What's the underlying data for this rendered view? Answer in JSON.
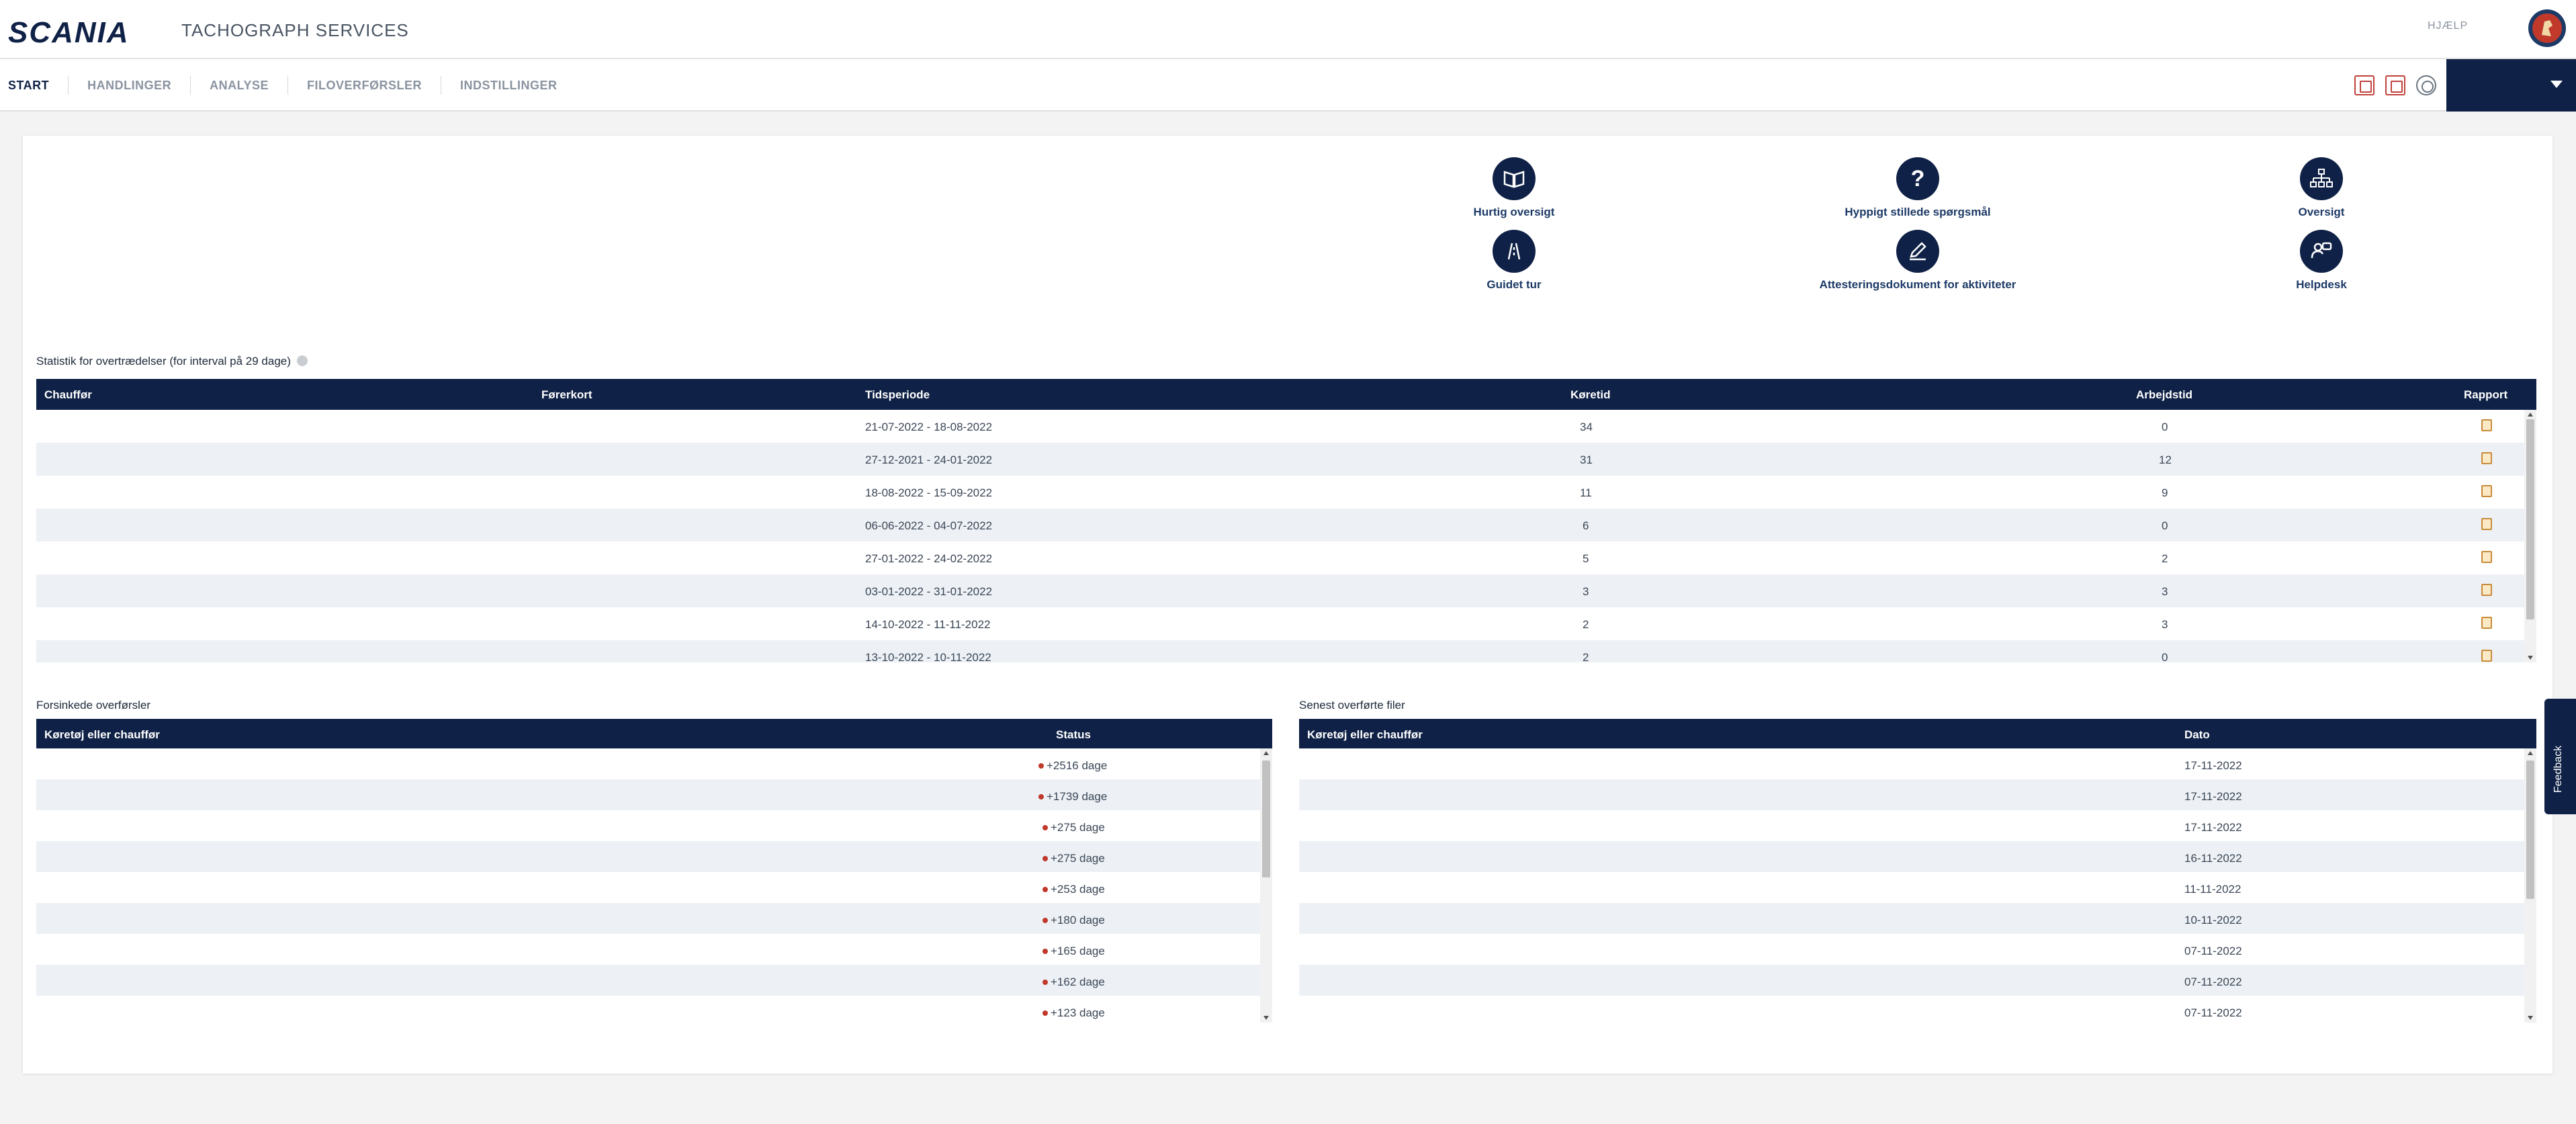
{
  "header": {
    "logo": "SCANIA",
    "app_title": "TACHOGRAPH SERVICES",
    "help": "HJÆLP"
  },
  "nav": {
    "tabs": [
      "START",
      "HANDLINGER",
      "ANALYSE",
      "FILOVERFØRSLER",
      "INDSTILLINGER"
    ],
    "icons": [
      "report-icon",
      "calendar-icon",
      "gear-icon"
    ]
  },
  "quick_actions": [
    {
      "label": "Hurtig oversigt",
      "icon": "book-icon",
      "glyph": "📖"
    },
    {
      "label": "Hyppigt stillede spørgsmål",
      "icon": "question-icon",
      "glyph": "?"
    },
    {
      "label": "Oversigt",
      "icon": "sitemap-icon",
      "glyph": "⊞"
    },
    {
      "label": "Guidet tur",
      "icon": "road-icon",
      "glyph": "/!\\"
    },
    {
      "label": "Attesteringsdokument for aktiviteter",
      "icon": "pen-icon",
      "glyph": "✎"
    },
    {
      "label": "Helpdesk",
      "icon": "helpdesk-icon",
      "glyph": "☏"
    }
  ],
  "violations": {
    "title": "Statistik for overtrædelser (for interval på 29 dage)",
    "columns": [
      "Chauffør",
      "Førerkort",
      "Tidsperiode",
      "Køretid",
      "Arbejdstid",
      "Rapport"
    ],
    "rows": [
      {
        "period": "21-07-2022 - 18-08-2022",
        "driving": "34",
        "work": "0"
      },
      {
        "period": "27-12-2021 - 24-01-2022",
        "driving": "31",
        "work": "12"
      },
      {
        "period": "18-08-2022 - 15-09-2022",
        "driving": "11",
        "work": "9"
      },
      {
        "period": "06-06-2022 - 04-07-2022",
        "driving": "6",
        "work": "0"
      },
      {
        "period": "27-01-2022 - 24-02-2022",
        "driving": "5",
        "work": "2"
      },
      {
        "period": "03-01-2022 - 31-01-2022",
        "driving": "3",
        "work": "3"
      },
      {
        "period": "14-10-2022 - 11-11-2022",
        "driving": "2",
        "work": "3"
      },
      {
        "period": "13-10-2022 - 10-11-2022",
        "driving": "2",
        "work": "0"
      }
    ]
  },
  "delayed": {
    "title": "Forsinkede overførsler",
    "columns": [
      "Køretøj eller chauffør",
      "Status"
    ],
    "rows": [
      "+2516 dage",
      "+1739 dage",
      "+275 dage",
      "+275 dage",
      "+253 dage",
      "+180 dage",
      "+165 dage",
      "+162 dage",
      "+123 dage"
    ],
    "status_color": "#c0392b"
  },
  "recent": {
    "title": "Senest overførte filer",
    "columns": [
      "Køretøj eller chauffør",
      "Dato"
    ],
    "rows": [
      "17-11-2022",
      "17-11-2022",
      "17-11-2022",
      "16-11-2022",
      "11-11-2022",
      "10-11-2022",
      "07-11-2022",
      "07-11-2022",
      "07-11-2022"
    ]
  },
  "feedback": "Feedback",
  "colors": {
    "primary": "#0f2146",
    "stripe": "#edf1f5",
    "alert": "#c0392b"
  }
}
